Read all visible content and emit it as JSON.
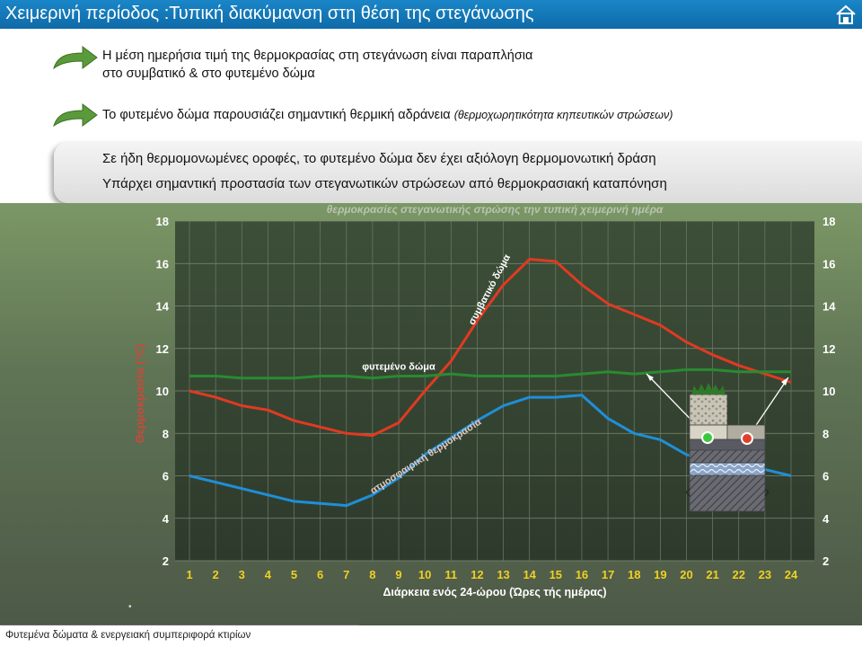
{
  "header": {
    "title": "Χειμερινή περίοδος :Τυπική διακύμανση στη θέση της στεγάνωσης",
    "home_icon": "home-icon"
  },
  "bullets": [
    {
      "line1": "Η μέση ημερήσια τιμή της θερμοκρασίας στη στεγάνωση είναι παραπλήσια",
      "line2": "στο συμβατικό & στο φυτεμένο δώμα"
    },
    {
      "main": "Το φυτεμένο δώμα παρουσιάζει σημαντική θερμική αδράνεια",
      "note": "(θερμοχωρητικότητα κηπευτικών στρώσεων)"
    }
  ],
  "highlight": {
    "line1": "Σε ήδη θερμομονωμένες οροφές, το φυτεμένο δώμα δεν έχει αξιόλογη θερμομονωτική δράση",
    "line2": "Υπάρχει σημαντική προστασία των στεγανωτικών στρώσεων από θερμοκρασιακή καταπόνηση"
  },
  "chart_data": {
    "type": "line",
    "title": "θερμοκρασίες στεγανωτικής στρώσης την τυπική χειμερινή ημέρα",
    "xlabel": "Διάρκεια ενός 24-ώρου (Ώρες τής ημέρας)",
    "ylabel": "Θερμοκρασία (°C)",
    "x": [
      1,
      2,
      3,
      4,
      5,
      6,
      7,
      8,
      9,
      10,
      11,
      12,
      13,
      14,
      15,
      16,
      17,
      18,
      19,
      20,
      21,
      22,
      23,
      24
    ],
    "ylim": [
      2,
      18
    ],
    "yticks": [
      2,
      4,
      6,
      8,
      10,
      12,
      14,
      16,
      18
    ],
    "grid": true,
    "series": [
      {
        "name": "συμβατικό δώμα",
        "color": "#e03a22",
        "values": [
          10.0,
          9.7,
          9.3,
          9.1,
          8.6,
          8.3,
          8.0,
          7.9,
          8.5,
          10.0,
          11.4,
          13.3,
          15.0,
          16.2,
          16.1,
          15.0,
          14.1,
          13.6,
          13.1,
          12.3,
          11.7,
          11.2,
          10.8,
          10.4
        ]
      },
      {
        "name": "φυτεμένο δώμα",
        "color": "#2a8a32",
        "values": [
          10.7,
          10.7,
          10.6,
          10.6,
          10.6,
          10.7,
          10.7,
          10.6,
          10.7,
          10.7,
          10.8,
          10.7,
          10.7,
          10.7,
          10.7,
          10.8,
          10.9,
          10.8,
          10.9,
          11.0,
          11.0,
          10.9,
          10.9,
          10.9
        ]
      },
      {
        "name": "ατμοσφαιρική θερμοκρασία",
        "color": "#1e8fd8",
        "values": [
          6.0,
          5.7,
          5.4,
          5.1,
          4.8,
          4.7,
          4.6,
          5.1,
          5.9,
          7.0,
          7.8,
          8.6,
          9.3,
          9.7,
          9.7,
          9.8,
          8.7,
          8.0,
          7.7,
          7.0,
          6.7,
          6.6,
          6.3,
          6.0
        ]
      }
    ]
  },
  "footer": {
    "text": "Φυτεμένα δώματα & ενεργειακή συμπεριφορά κτιρίων"
  }
}
